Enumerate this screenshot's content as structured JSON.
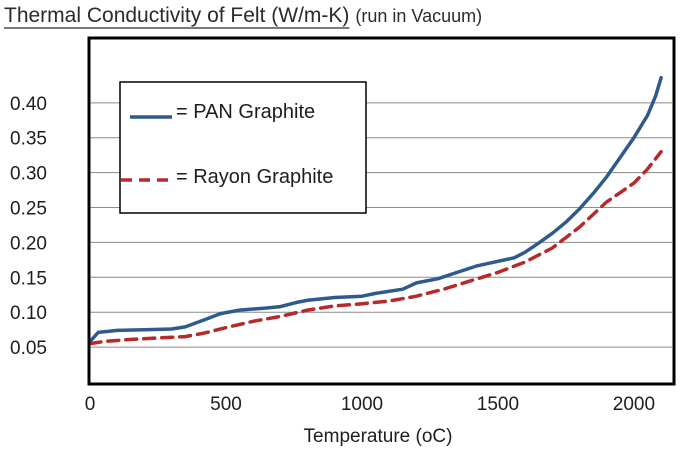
{
  "chart_data": {
    "type": "line",
    "title": "Thermal Conductivity of Felt (W/m-K)",
    "subtitle": "(run in Vacuum)",
    "xlabel": "Temperature (oC)",
    "ylabel": "",
    "xlim": [
      0,
      2140
    ],
    "ylim": [
      0,
      0.49
    ],
    "x_ticks": [
      "0",
      "500",
      "1000",
      "1500",
      "2000"
    ],
    "x_tick_values": [
      0,
      500,
      1000,
      1500,
      2000
    ],
    "y_ticks": [
      "0.05",
      "0.10",
      "0.15",
      "0.20",
      "0.25",
      "0.30",
      "0.35",
      "0.40"
    ],
    "y_tick_values": [
      0.05,
      0.1,
      0.15,
      0.2,
      0.25,
      0.3,
      0.35,
      0.4
    ],
    "grid": "horizontal",
    "legend_position": "top-left",
    "series": [
      {
        "name": "PAN Graphite",
        "color": "#2f5a8c",
        "dash": "solid",
        "x": [
          0,
          30,
          100,
          200,
          300,
          350,
          420,
          480,
          550,
          650,
          700,
          760,
          800,
          900,
          1000,
          1050,
          1150,
          1200,
          1280,
          1350,
          1420,
          1500,
          1560,
          1600,
          1650,
          1700,
          1750,
          1800,
          1850,
          1900,
          1950,
          2000,
          2050,
          2080,
          2100
        ],
        "y": [
          0.058,
          0.071,
          0.074,
          0.075,
          0.076,
          0.079,
          0.089,
          0.098,
          0.103,
          0.106,
          0.108,
          0.114,
          0.117,
          0.121,
          0.123,
          0.127,
          0.133,
          0.142,
          0.148,
          0.157,
          0.166,
          0.173,
          0.178,
          0.186,
          0.199,
          0.213,
          0.229,
          0.248,
          0.27,
          0.294,
          0.322,
          0.35,
          0.382,
          0.41,
          0.436
        ]
      },
      {
        "name": "Rayon Graphite",
        "color": "#b52a2a",
        "dash": "dashed",
        "x": [
          0,
          50,
          150,
          250,
          350,
          420,
          500,
          600,
          700,
          800,
          900,
          1000,
          1100,
          1200,
          1300,
          1400,
          1500,
          1600,
          1700,
          1800,
          1900,
          2000,
          2050,
          2100
        ],
        "y": [
          0.055,
          0.058,
          0.061,
          0.063,
          0.065,
          0.07,
          0.078,
          0.087,
          0.094,
          0.103,
          0.109,
          0.112,
          0.116,
          0.123,
          0.133,
          0.145,
          0.157,
          0.172,
          0.192,
          0.222,
          0.258,
          0.285,
          0.305,
          0.33
        ]
      }
    ]
  }
}
